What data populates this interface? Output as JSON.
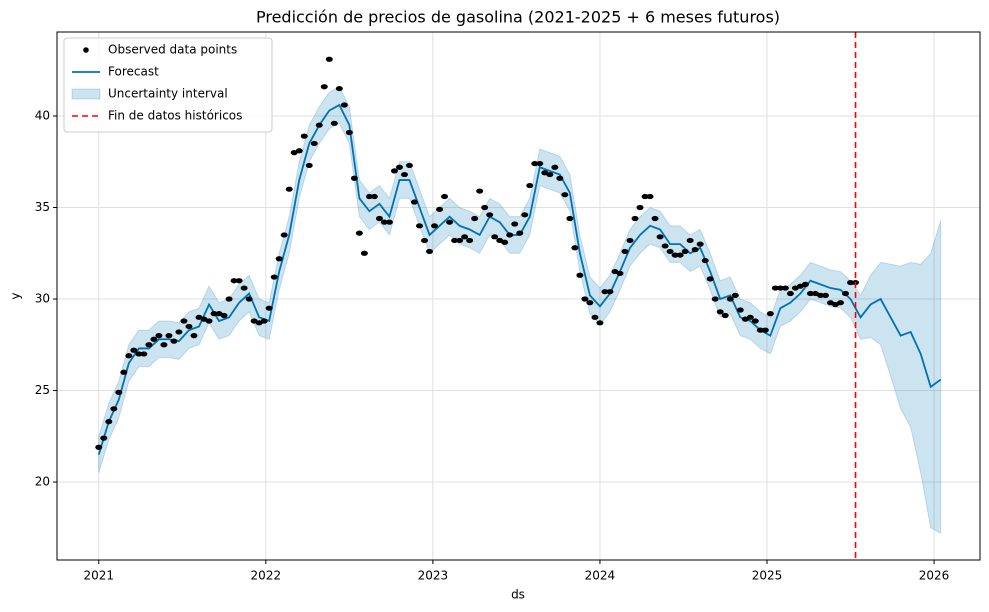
{
  "chart_data": {
    "type": "forecast",
    "title": "Predicción de precios de gasolina (2021-2025 + 6 meses futuros)",
    "x_label": "ds",
    "y_label": "y",
    "xlim": [
      2020.75,
      2026.275
    ],
    "ylim": [
      15.74,
      44.59
    ],
    "xticks": [
      2021,
      2022,
      2023,
      2024,
      2025,
      2026
    ],
    "yticks": [
      20,
      25,
      30,
      35,
      40
    ],
    "grid": true,
    "legend": "upper left",
    "series": [
      {
        "name": "Observed data points",
        "type": "scatter",
        "color": "#000000",
        "x": [
          2021,
          2021.03,
          2021.06,
          2021.09,
          2021.12,
          2021.15,
          2021.18,
          2021.21,
          2021.24,
          2021.27,
          2021.3,
          2021.33,
          2021.36,
          2021.39,
          2021.42,
          2021.45,
          2021.48,
          2021.51,
          2021.54,
          2021.57,
          2021.6,
          2021.63,
          2021.66,
          2021.69,
          2021.72,
          2021.75,
          2021.78,
          2021.81,
          2021.84,
          2021.87,
          2021.9,
          2021.93,
          2021.96,
          2021.99,
          2022.02,
          2022.05,
          2022.08,
          2022.11,
          2022.14,
          2022.17,
          2022.2,
          2022.23,
          2022.26,
          2022.29,
          2022.32,
          2022.35,
          2022.38,
          2022.41,
          2022.44,
          2022.47,
          2022.5,
          2022.53,
          2022.56,
          2022.59,
          2022.62,
          2022.65,
          2022.68,
          2022.71,
          2022.74,
          2022.77,
          2022.8,
          2022.83,
          2022.86,
          2022.89,
          2022.92,
          2022.95,
          2022.98,
          2023.01,
          2023.04,
          2023.07,
          2023.1,
          2023.13,
          2023.16,
          2023.19,
          2023.22,
          2023.25,
          2023.28,
          2023.31,
          2023.34,
          2023.37,
          2023.4,
          2023.43,
          2023.46,
          2023.49,
          2023.52,
          2023.55,
          2023.58,
          2023.61,
          2023.64,
          2023.67,
          2023.7,
          2023.73,
          2023.76,
          2023.79,
          2023.82,
          2023.85,
          2023.88,
          2023.91,
          2023.94,
          2023.97,
          2024,
          2024.03,
          2024.06,
          2024.09,
          2024.12,
          2024.15,
          2024.18,
          2024.21,
          2024.24,
          2024.27,
          2024.3,
          2024.33,
          2024.36,
          2024.39,
          2024.42,
          2024.45,
          2024.48,
          2024.51,
          2024.54,
          2024.57,
          2024.6,
          2024.63,
          2024.66,
          2024.69,
          2024.72,
          2024.75,
          2024.78,
          2024.81,
          2024.84,
          2024.87,
          2024.9,
          2024.93,
          2024.96,
          2024.99,
          2025.02,
          2025.05,
          2025.08,
          2025.11,
          2025.14,
          2025.17,
          2025.2,
          2025.23,
          2025.26,
          2025.29,
          2025.32,
          2025.35,
          2025.38,
          2025.41,
          2025.44,
          2025.47,
          2025.5,
          2025.53
        ],
        "values": [
          21.9,
          22.4,
          23.3,
          24,
          24.9,
          26,
          26.9,
          27.2,
          27,
          27,
          27.5,
          27.8,
          28,
          27.5,
          28,
          27.7,
          28.2,
          28.8,
          28.5,
          28,
          29,
          28.9,
          28.8,
          29.2,
          29.2,
          29.1,
          30,
          31,
          31,
          30.6,
          30,
          28.8,
          28.7,
          28.8,
          29.5,
          31.2,
          32.2,
          33.5,
          36,
          38,
          38.1,
          38.9,
          37.3,
          38.5,
          39.5,
          41.6,
          43.1,
          39.6,
          41.5,
          40.6,
          39.1,
          36.6,
          33.6,
          32.5,
          35.6,
          35.6,
          34.4,
          34.2,
          34.2,
          37,
          37.2,
          36.8,
          37.3,
          35.3,
          34,
          33.2,
          32.6,
          34,
          34.9,
          35.6,
          34.2,
          33.2,
          33.2,
          33.4,
          33.2,
          34.4,
          35.9,
          35,
          34.6,
          33.4,
          33.2,
          33.1,
          33.5,
          34.1,
          33.6,
          34.6,
          36.2,
          37.4,
          37.4,
          36.9,
          36.8,
          37.2,
          36.6,
          35.7,
          34.4,
          32.8,
          31.3,
          30,
          29.8,
          29,
          28.7,
          30.4,
          30.4,
          31.5,
          31.4,
          32.6,
          33.2,
          34.4,
          35,
          35.6,
          35.6,
          34.4,
          33.4,
          32.9,
          32.6,
          32.4,
          32.4,
          32.6,
          33.2,
          32.7,
          33,
          32.1,
          31.1,
          30,
          29.3,
          29.1,
          30,
          30.2,
          29.4,
          28.9,
          29,
          28.8,
          28.3,
          28.3,
          29.2,
          30.6,
          30.6,
          30.6,
          30.3,
          30.6,
          30.7,
          30.8,
          30.3,
          30.3,
          30.2,
          30.2,
          29.8,
          29.7,
          29.8,
          30.3,
          30.9,
          30.9
        ]
      },
      {
        "name": "Forecast",
        "type": "line",
        "color": "#0072B2",
        "x": [
          2021,
          2021.06,
          2021.12,
          2021.18,
          2021.24,
          2021.3,
          2021.36,
          2021.42,
          2021.48,
          2021.54,
          2021.6,
          2021.66,
          2021.72,
          2021.78,
          2021.84,
          2021.9,
          2021.96,
          2022.02,
          2022.08,
          2022.14,
          2022.2,
          2022.26,
          2022.32,
          2022.38,
          2022.44,
          2022.5,
          2022.56,
          2022.62,
          2022.68,
          2022.74,
          2022.8,
          2022.86,
          2022.92,
          2022.98,
          2023.04,
          2023.1,
          2023.16,
          2023.22,
          2023.28,
          2023.34,
          2023.4,
          2023.46,
          2023.52,
          2023.58,
          2023.64,
          2023.7,
          2023.76,
          2023.82,
          2023.88,
          2023.94,
          2024,
          2024.06,
          2024.12,
          2024.18,
          2024.24,
          2024.3,
          2024.36,
          2024.42,
          2024.48,
          2024.54,
          2024.6,
          2024.66,
          2024.72,
          2024.78,
          2024.84,
          2024.9,
          2024.96,
          2025.02,
          2025.08,
          2025.14,
          2025.2,
          2025.26,
          2025.32,
          2025.38,
          2025.44,
          2025.5,
          2025.56,
          2025.62,
          2025.68,
          2025.74,
          2025.8,
          2025.86,
          2025.92,
          2025.98,
          2026.04
        ],
        "values": [
          21.5,
          23.3,
          24.5,
          26.5,
          27.3,
          27.3,
          27.8,
          27.8,
          27.7,
          28.3,
          28.5,
          29.7,
          28.8,
          29.0,
          29.8,
          30.3,
          29.0,
          28.8,
          31.5,
          33.5,
          36.5,
          38.5,
          39.5,
          40.3,
          40.6,
          39.5,
          35.5,
          34.8,
          35.2,
          34.5,
          36.5,
          36.5,
          35.0,
          33.5,
          34.0,
          34.5,
          34.0,
          33.8,
          33.5,
          34.5,
          34.2,
          33.5,
          33.5,
          34.5,
          37.2,
          37.0,
          36.8,
          35.8,
          32.5,
          30.2,
          29.6,
          30.3,
          31.5,
          32.8,
          33.5,
          34.0,
          33.8,
          33.0,
          33.0,
          32.5,
          32.8,
          31.5,
          30.0,
          30.2,
          29.0,
          28.8,
          28.3,
          28.0,
          29.5,
          29.8,
          30.3,
          31.0,
          30.8,
          30.6,
          30.5,
          30.0,
          29.0,
          29.7,
          30.0,
          29.0,
          28.0,
          28.2,
          27.0,
          25.2,
          25.6
        ]
      },
      {
        "name": "Uncertainty interval",
        "type": "band",
        "color": "#0072B2",
        "opacity": 0.2,
        "lower": [
          20.5,
          22.3,
          23.5,
          25.5,
          26.3,
          26.3,
          26.8,
          26.8,
          26.7,
          27.3,
          27.5,
          28.7,
          27.8,
          28.0,
          28.8,
          29.3,
          28.0,
          27.8,
          30.5,
          32.5,
          35.5,
          37.5,
          38.5,
          39.3,
          39.6,
          38.5,
          34.5,
          33.8,
          34.2,
          33.5,
          35.5,
          35.5,
          34.0,
          32.5,
          33.0,
          33.5,
          33.0,
          32.8,
          32.5,
          33.5,
          33.2,
          32.5,
          32.5,
          33.5,
          36.2,
          36.0,
          35.8,
          34.8,
          31.5,
          29.2,
          28.6,
          29.3,
          30.5,
          31.8,
          32.5,
          33.0,
          32.8,
          32.0,
          32.0,
          31.5,
          31.8,
          30.5,
          29.0,
          29.2,
          28.0,
          27.8,
          27.3,
          27.0,
          28.5,
          28.8,
          29.3,
          30.0,
          29.8,
          29.6,
          29.5,
          29.0,
          27.8,
          27.9,
          27.5,
          25.8,
          24.0,
          23.0,
          20.5,
          17.5,
          17.2
        ],
        "upper": [
          22.5,
          24.3,
          25.5,
          27.5,
          28.3,
          28.3,
          28.8,
          28.8,
          28.7,
          29.3,
          29.5,
          30.7,
          29.8,
          30.0,
          30.8,
          31.3,
          30.0,
          29.8,
          32.5,
          34.5,
          37.5,
          39.5,
          40.5,
          41.3,
          41.6,
          40.5,
          36.5,
          35.8,
          36.2,
          35.5,
          37.5,
          37.5,
          36.0,
          34.5,
          35.0,
          35.5,
          35.0,
          34.8,
          34.5,
          35.5,
          35.2,
          34.5,
          34.5,
          35.5,
          38.2,
          38.0,
          37.8,
          36.8,
          33.5,
          31.2,
          30.6,
          31.3,
          32.5,
          33.8,
          34.5,
          35.0,
          34.8,
          34.0,
          34.0,
          33.5,
          33.8,
          32.5,
          31.0,
          31.2,
          30.0,
          29.8,
          29.3,
          29.0,
          30.5,
          30.8,
          31.3,
          32.0,
          31.8,
          31.6,
          31.5,
          31.0,
          30.2,
          31.3,
          32.0,
          31.9,
          31.8,
          32.0,
          31.9,
          32.5,
          34.3
        ]
      }
    ],
    "vlines": [
      {
        "name": "Fin de datos históricos",
        "x": 2025.53,
        "color": "#ff0000",
        "dash": "6,4"
      }
    ]
  }
}
